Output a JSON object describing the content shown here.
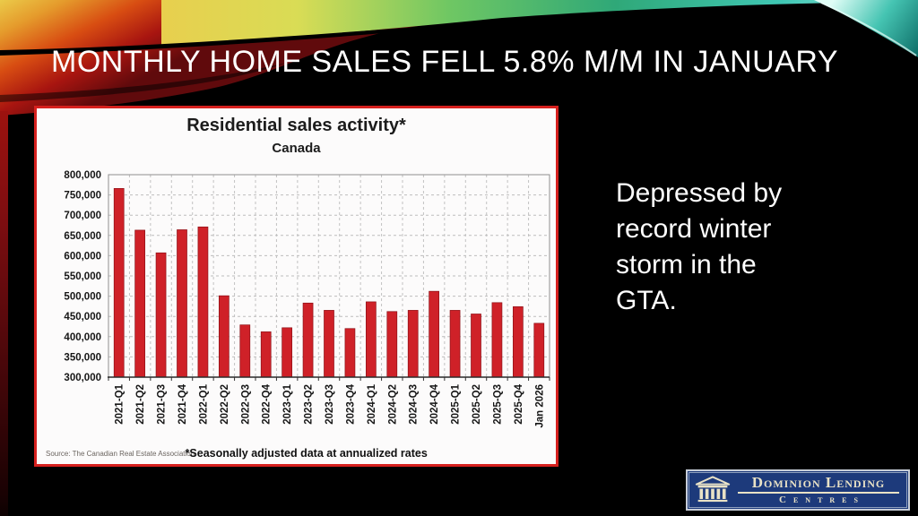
{
  "slide": {
    "title": "MONTHLY HOME SALES FELL 5.8% M/M IN JANUARY",
    "side_note": "Depressed by record winter storm in the GTA."
  },
  "chart_data": {
    "type": "bar",
    "title": "Residential sales activity*",
    "subtitle": "Canada",
    "categories": [
      "2021-Q1",
      "2021-Q2",
      "2021-Q3",
      "2021-Q4",
      "2022-Q1",
      "2022-Q2",
      "2022-Q3",
      "2022-Q4",
      "2023-Q1",
      "2023-Q2",
      "2023-Q3",
      "2023-Q4",
      "2024-Q1",
      "2024-Q2",
      "2024-Q3",
      "2024-Q4",
      "2025-Q1",
      "2025-Q2",
      "2025-Q3",
      "2025-Q4",
      "Jan 2026"
    ],
    "values": [
      766000,
      663000,
      607000,
      664000,
      671000,
      501000,
      429000,
      412000,
      422000,
      483000,
      465000,
      420000,
      486000,
      462000,
      465000,
      512000,
      465000,
      456000,
      484000,
      474000,
      433000
    ],
    "ylim": [
      300000,
      800000
    ],
    "ytick_step": 50000,
    "xlabel": "",
    "ylabel": "",
    "grid": true,
    "legend": "none",
    "bar_color": "#cf2128",
    "source": "Source: The Canadian Real Estate Association",
    "footnote": "*Seasonally adjusted data at annualized rates"
  },
  "logo": {
    "name": "Dominion Lending Centres",
    "line1": "Dominion Lending",
    "line2": "Centres"
  },
  "colors": {
    "card_border_red": "#d6201e",
    "bar_red": "#cf2128",
    "logo_navy": "#1d3a7b",
    "logo_cream": "#e9e2c6"
  }
}
